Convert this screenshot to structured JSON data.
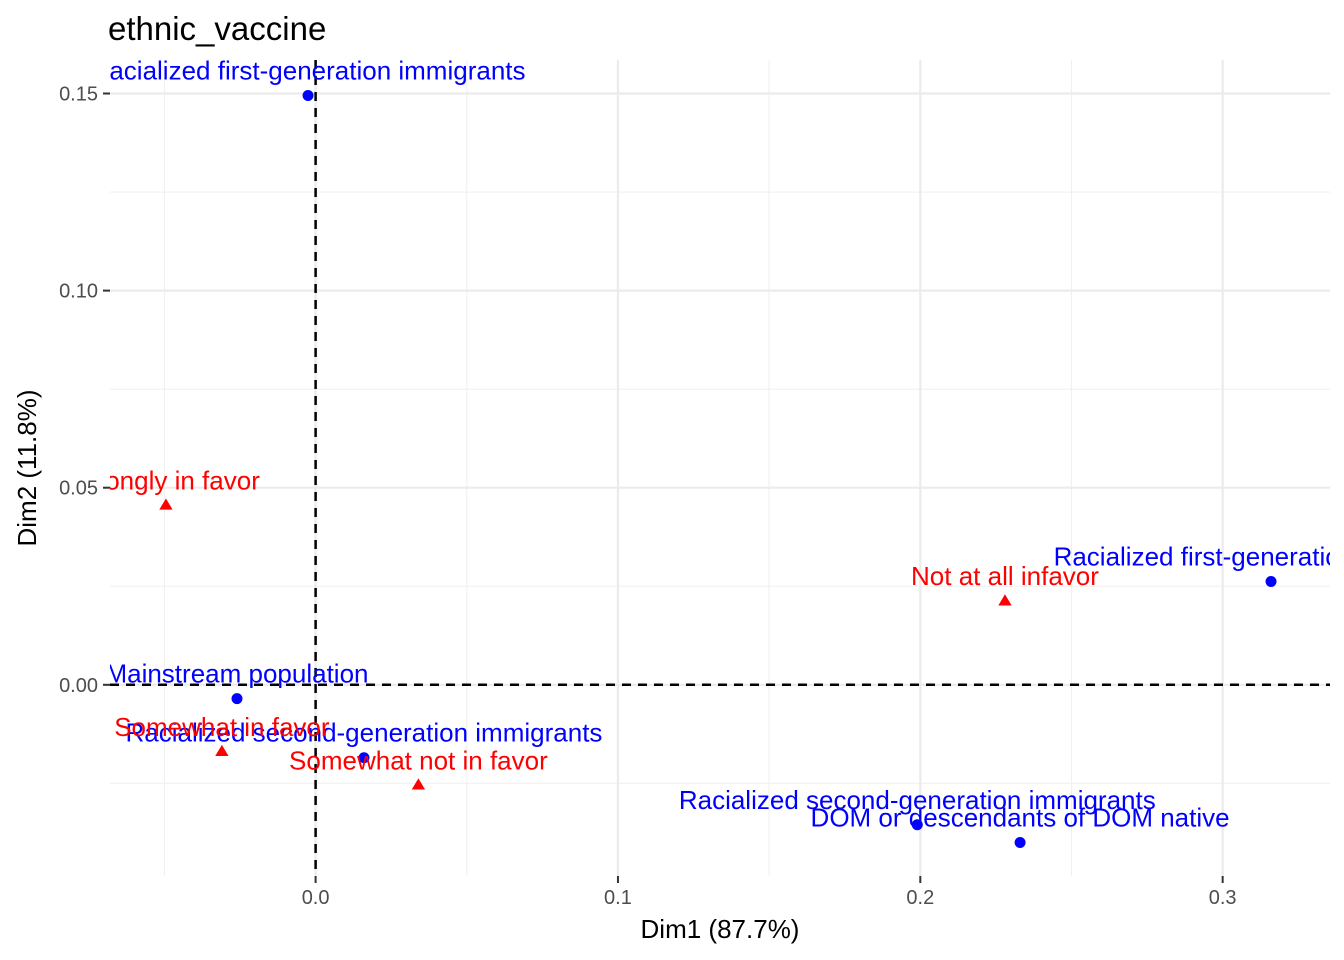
{
  "chart_data": {
    "type": "scatter",
    "title": "ethnic_vaccine",
    "xlabel": "Dim1 (87.7%)",
    "ylabel": "Dim2 (11.8%)",
    "xlim": [
      -0.068,
      0.3355
    ],
    "ylim": [
      -0.0485,
      0.1585
    ],
    "x_ticks": [
      {
        "value": 0.0,
        "label": "0.0"
      },
      {
        "value": 0.1,
        "label": "0.1"
      },
      {
        "value": 0.2,
        "label": "0.2"
      },
      {
        "value": 0.3,
        "label": "0.3"
      }
    ],
    "y_ticks": [
      {
        "value": 0.0,
        "label": "0.00"
      },
      {
        "value": 0.05,
        "label": "0.05"
      },
      {
        "value": 0.1,
        "label": "0.10"
      },
      {
        "value": 0.15,
        "label": "0.15"
      }
    ],
    "x_minor": [
      -0.05,
      0.05,
      0.15,
      0.25
    ],
    "y_minor": [
      -0.025,
      0.025,
      0.075,
      0.125
    ],
    "grid": true,
    "reference_lines": {
      "x": 0,
      "y": 0,
      "style": "dashed"
    },
    "series": [
      {
        "color": "#0000ff",
        "marker": "circle",
        "points": [
          {
            "label": "Racialized first-generation immigrants",
            "x": -0.0025,
            "y": 0.1495
          },
          {
            "label": "Racialized first-generation immigrants",
            "x": 0.316,
            "y": 0.0262
          },
          {
            "label": "Mainstream population",
            "x": -0.026,
            "y": -0.0035
          },
          {
            "label": "Racialized second-generation immigrants",
            "x": 0.016,
            "y": -0.0185
          },
          {
            "label": "Racialized second-generation immigrants",
            "x": 0.199,
            "y": -0.0355
          },
          {
            "label": "DOM or descendants of DOM native",
            "x": 0.233,
            "y": -0.04
          }
        ]
      },
      {
        "color": "#ff0000",
        "marker": "triangle",
        "points": [
          {
            "label": "Strongly in favor",
            "x": -0.0495,
            "y": 0.0455
          },
          {
            "label": "Not at all infavor",
            "x": 0.228,
            "y": 0.0212
          },
          {
            "label": "Somewhat in favor",
            "x": -0.031,
            "y": -0.017
          },
          {
            "label": "Somewhat not in favor",
            "x": 0.034,
            "y": -0.0255
          }
        ]
      }
    ]
  }
}
